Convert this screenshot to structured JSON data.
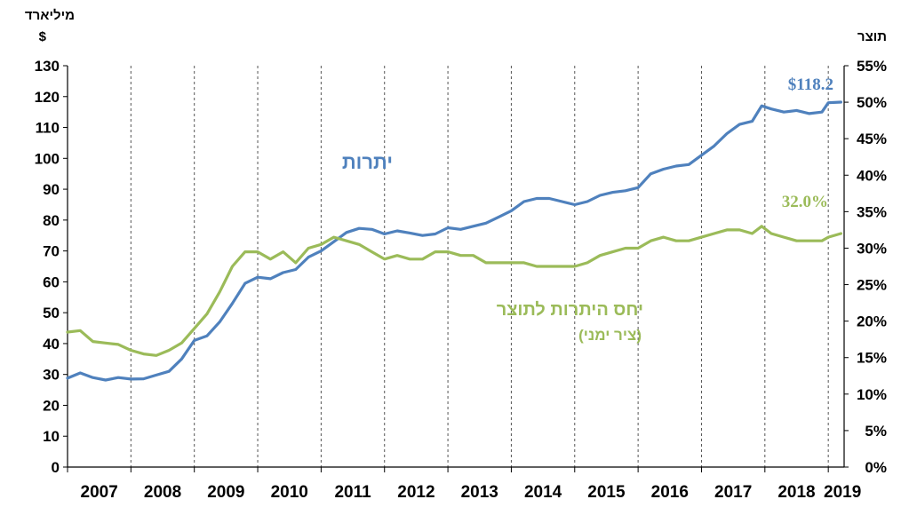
{
  "chart_data": {
    "type": "line",
    "y_left": {
      "title_line1": "מיליארד",
      "title_line2": "$",
      "min": 0,
      "max": 130,
      "step": 10
    },
    "y_right": {
      "title": "תוצר",
      "min": 0,
      "max": 55,
      "step": 5,
      "unit": "%"
    },
    "x_years": [
      "2007",
      "2008",
      "2009",
      "2010",
      "2011",
      "2012",
      "2013",
      "2014",
      "2015",
      "2016",
      "2017",
      "2018",
      "2019"
    ],
    "x_range": [
      2007,
      2019.25
    ],
    "colors": {
      "reserves": "#4f81bd",
      "ratio": "#9bbb59"
    },
    "series": [
      {
        "name": "יתרות",
        "axis": "left",
        "color": "#4f81bd",
        "points": [
          [
            2007.0,
            28.8
          ],
          [
            2007.2,
            30.5
          ],
          [
            2007.4,
            29.0
          ],
          [
            2007.6,
            28.2
          ],
          [
            2007.8,
            29.0
          ],
          [
            2008.0,
            28.5
          ],
          [
            2008.2,
            28.6
          ],
          [
            2008.4,
            29.8
          ],
          [
            2008.6,
            31.0
          ],
          [
            2008.8,
            35.0
          ],
          [
            2009.0,
            41.0
          ],
          [
            2009.2,
            42.5
          ],
          [
            2009.4,
            47.0
          ],
          [
            2009.6,
            53.0
          ],
          [
            2009.8,
            59.5
          ],
          [
            2010.0,
            61.5
          ],
          [
            2010.2,
            61.0
          ],
          [
            2010.4,
            63.0
          ],
          [
            2010.6,
            64.0
          ],
          [
            2010.8,
            68.0
          ],
          [
            2011.0,
            70.0
          ],
          [
            2011.2,
            73.0
          ],
          [
            2011.4,
            76.0
          ],
          [
            2011.6,
            77.3
          ],
          [
            2011.8,
            77.0
          ],
          [
            2012.0,
            75.5
          ],
          [
            2012.2,
            76.5
          ],
          [
            2012.4,
            75.8
          ],
          [
            2012.6,
            75.0
          ],
          [
            2012.8,
            75.5
          ],
          [
            2013.0,
            77.5
          ],
          [
            2013.2,
            77.0
          ],
          [
            2013.4,
            78.0
          ],
          [
            2013.6,
            79.0
          ],
          [
            2013.8,
            81.0
          ],
          [
            2014.0,
            83.0
          ],
          [
            2014.2,
            86.0
          ],
          [
            2014.4,
            87.0
          ],
          [
            2014.6,
            87.0
          ],
          [
            2014.8,
            86.0
          ],
          [
            2015.0,
            85.0
          ],
          [
            2015.2,
            86.0
          ],
          [
            2015.4,
            88.0
          ],
          [
            2015.6,
            89.0
          ],
          [
            2015.8,
            89.5
          ],
          [
            2016.0,
            90.5
          ],
          [
            2016.2,
            95.0
          ],
          [
            2016.4,
            96.5
          ],
          [
            2016.6,
            97.5
          ],
          [
            2016.8,
            98.0
          ],
          [
            2017.0,
            101.0
          ],
          [
            2017.2,
            104.0
          ],
          [
            2017.4,
            108.0
          ],
          [
            2017.6,
            111.0
          ],
          [
            2017.8,
            112.0
          ],
          [
            2017.95,
            117.0
          ],
          [
            2018.1,
            116.0
          ],
          [
            2018.3,
            115.0
          ],
          [
            2018.5,
            115.5
          ],
          [
            2018.7,
            114.5
          ],
          [
            2018.9,
            115.0
          ],
          [
            2019.0,
            118.0
          ],
          [
            2019.2,
            118.2
          ]
        ]
      },
      {
        "name": "יחס היתרות לתוצר",
        "axis": "right",
        "color": "#9bbb59",
        "points": [
          [
            2007.0,
            18.5
          ],
          [
            2007.2,
            18.7
          ],
          [
            2007.4,
            17.2
          ],
          [
            2007.6,
            17.0
          ],
          [
            2007.8,
            16.8
          ],
          [
            2008.0,
            16.0
          ],
          [
            2008.2,
            15.5
          ],
          [
            2008.4,
            15.3
          ],
          [
            2008.6,
            16.0
          ],
          [
            2008.8,
            17.0
          ],
          [
            2009.0,
            19.0
          ],
          [
            2009.2,
            21.0
          ],
          [
            2009.4,
            24.0
          ],
          [
            2009.6,
            27.5
          ],
          [
            2009.8,
            29.5
          ],
          [
            2010.0,
            29.5
          ],
          [
            2010.2,
            28.5
          ],
          [
            2010.4,
            29.5
          ],
          [
            2010.6,
            28.0
          ],
          [
            2010.8,
            30.0
          ],
          [
            2011.0,
            30.5
          ],
          [
            2011.2,
            31.5
          ],
          [
            2011.4,
            31.0
          ],
          [
            2011.6,
            30.5
          ],
          [
            2011.8,
            29.5
          ],
          [
            2012.0,
            28.5
          ],
          [
            2012.2,
            29.0
          ],
          [
            2012.4,
            28.5
          ],
          [
            2012.6,
            28.5
          ],
          [
            2012.8,
            29.5
          ],
          [
            2013.0,
            29.5
          ],
          [
            2013.2,
            29.0
          ],
          [
            2013.4,
            29.0
          ],
          [
            2013.6,
            28.0
          ],
          [
            2013.8,
            28.0
          ],
          [
            2014.0,
            28.0
          ],
          [
            2014.2,
            28.0
          ],
          [
            2014.4,
            27.5
          ],
          [
            2014.6,
            27.5
          ],
          [
            2014.8,
            27.5
          ],
          [
            2015.0,
            27.5
          ],
          [
            2015.2,
            28.0
          ],
          [
            2015.4,
            29.0
          ],
          [
            2015.6,
            29.5
          ],
          [
            2015.8,
            30.0
          ],
          [
            2016.0,
            30.0
          ],
          [
            2016.2,
            31.0
          ],
          [
            2016.4,
            31.5
          ],
          [
            2016.6,
            31.0
          ],
          [
            2016.8,
            31.0
          ],
          [
            2017.0,
            31.5
          ],
          [
            2017.2,
            32.0
          ],
          [
            2017.4,
            32.5
          ],
          [
            2017.6,
            32.5
          ],
          [
            2017.8,
            32.0
          ],
          [
            2017.95,
            33.0
          ],
          [
            2018.1,
            32.0
          ],
          [
            2018.3,
            31.5
          ],
          [
            2018.5,
            31.0
          ],
          [
            2018.7,
            31.0
          ],
          [
            2018.9,
            31.0
          ],
          [
            2019.0,
            31.5
          ],
          [
            2019.2,
            32.0
          ]
        ]
      }
    ],
    "labels": {
      "reserves": "יתרות",
      "ratio_line1": "יחס היתרות לתוצר",
      "ratio_line2": "(ציר ימני)",
      "reserves_value": "$118.2",
      "ratio_value": "32.0%"
    },
    "grid": "vertical-dashed-at-years"
  }
}
